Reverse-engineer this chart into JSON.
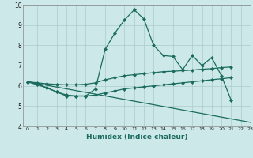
{
  "title": "",
  "xlabel": "Humidex (Indice chaleur)",
  "ylabel": "",
  "background_color": "#cce8e8",
  "line_color": "#1a6b5e",
  "xlim": [
    -0.5,
    23
  ],
  "ylim": [
    4,
    10
  ],
  "ytick_vals": [
    4,
    5,
    6,
    7,
    8,
    9,
    10
  ],
  "series": [
    {
      "x": [
        0,
        1,
        2,
        3,
        4,
        5,
        6,
        7,
        8,
        9,
        10,
        11,
        12,
        13,
        14,
        15,
        16,
        17,
        18,
        19,
        20,
        21,
        22
      ],
      "y": [
        6.2,
        6.1,
        5.9,
        5.7,
        5.5,
        5.5,
        5.5,
        5.85,
        7.8,
        8.6,
        9.25,
        9.75,
        9.3,
        8.0,
        7.5,
        7.45,
        6.8,
        7.5,
        7.0,
        7.4,
        6.5,
        5.3,
        null
      ]
    },
    {
      "x": [
        0,
        1,
        2,
        3,
        4,
        5,
        6,
        7,
        8,
        9,
        10,
        11,
        12,
        13,
        14,
        15,
        16,
        17,
        18,
        19,
        20,
        21,
        22
      ],
      "y": [
        6.2,
        6.15,
        6.1,
        6.07,
        6.05,
        6.05,
        6.08,
        6.15,
        6.3,
        6.4,
        6.5,
        6.55,
        6.6,
        6.65,
        6.7,
        6.72,
        6.75,
        6.78,
        6.82,
        6.85,
        6.9,
        6.93,
        null
      ]
    },
    {
      "x": [
        0,
        1,
        2,
        3,
        4,
        5,
        6,
        7,
        8,
        9,
        10,
        11,
        12,
        13,
        14,
        15,
        16,
        17,
        18,
        19,
        20,
        21,
        22
      ],
      "y": [
        6.2,
        6.05,
        5.9,
        5.7,
        5.55,
        5.5,
        5.5,
        5.55,
        5.65,
        5.75,
        5.85,
        5.9,
        5.95,
        6.0,
        6.05,
        6.1,
        6.15,
        6.2,
        6.25,
        6.3,
        6.35,
        6.4,
        null
      ]
    },
    {
      "x": [
        0,
        23
      ],
      "y": [
        6.2,
        4.2
      ]
    }
  ]
}
